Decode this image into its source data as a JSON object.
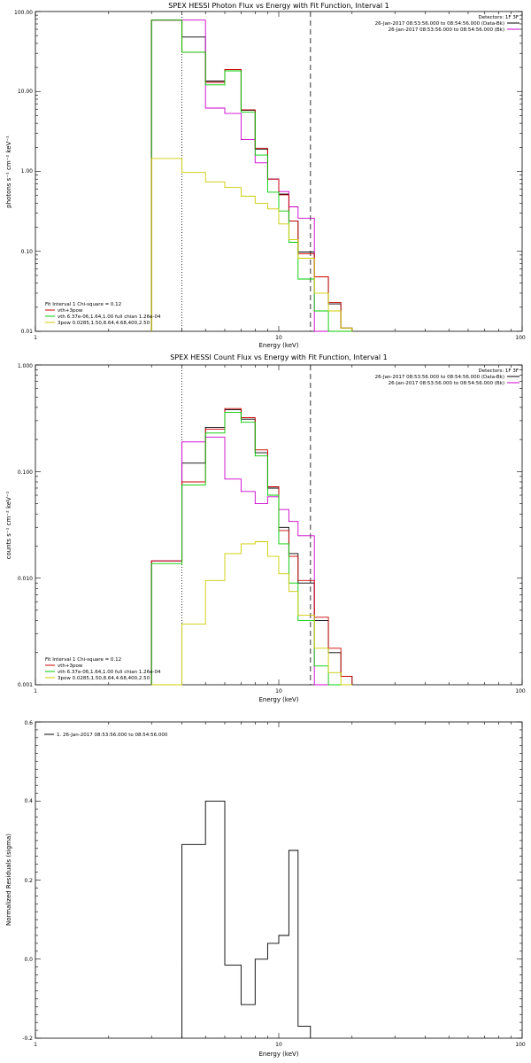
{
  "chart_data": [
    {
      "type": "line",
      "title": "SPEX HESSI Photon Flux vs Energy with Fit Function, Interval 1",
      "xlabel": "Energy (keV)",
      "ylabel": "photons s⁻¹ cm⁻² keV⁻¹",
      "xscale": "log",
      "yscale": "log",
      "xlim": [
        1,
        100
      ],
      "ylim": [
        0.01,
        100
      ],
      "xticks": [
        "1",
        "10",
        "100"
      ],
      "yticks": [
        "0.01",
        "0.10",
        "1.00",
        "10.00",
        "100.00"
      ],
      "detectors": "Detectors: 1F 3F",
      "legend_time": [
        {
          "text": "26-Jan-2017 08:53:56.000 to 08:54:56.000 (Data-Bk)",
          "color": "#000000"
        },
        {
          "text": "26-Jan-2017 08:53:56.000 to 08:54:56.000 (Bk)",
          "color": "#cc00cc"
        }
      ],
      "legend_fit": [
        {
          "text": "Fit Interval 1   Chi-square = 0.12",
          "color": "#000000"
        },
        {
          "text": "vth+3pow",
          "color": "#cc0000"
        },
        {
          "text": "vth 6.37e-06,1.64,1.00  full chian 1.26e-04",
          "color": "#00cc00"
        },
        {
          "text": "3pow 0.0285,1.50,8.64,4.68,400,2.50",
          "color": "#cccc00"
        }
      ],
      "bin_edges": [
        3,
        4,
        5,
        6,
        7,
        8,
        9,
        10,
        11,
        12,
        14,
        16,
        18,
        20
      ],
      "vlines": [
        {
          "x": 4,
          "style": "dotted"
        },
        {
          "x": 13.5,
          "style": "dashed"
        }
      ],
      "series": [
        {
          "name": "Data-Bk",
          "color": "#000000",
          "values": [
            78,
            48,
            13.5,
            18.8,
            5.8,
            1.9,
            0.8,
            0.52,
            0.24,
            0.098,
            0.048,
            0.022,
            0.011
          ]
        },
        {
          "name": "Bk",
          "color": "#cc00cc",
          "values": [
            78,
            78,
            6.2,
            5.3,
            2.5,
            1.28,
            0.8,
            0.56,
            0.36,
            0.26,
            0.01,
            0.01,
            0.01
          ]
        },
        {
          "name": "vth+3pow",
          "color": "#cc0000",
          "values": [
            78,
            31,
            13.0,
            18.8,
            5.9,
            1.95,
            0.8,
            0.51,
            0.24,
            0.093,
            0.048,
            0.023,
            0.011
          ]
        },
        {
          "name": "vth",
          "color": "#00cc00",
          "values": [
            78,
            31,
            12.1,
            18.1,
            5.5,
            1.6,
            0.55,
            0.32,
            0.13,
            0.045,
            0.018,
            0.01,
            0.01
          ]
        },
        {
          "name": "3pow",
          "color": "#cccc00",
          "values": [
            1.45,
            0.97,
            0.74,
            0.63,
            0.49,
            0.4,
            0.34,
            0.22,
            0.14,
            0.082,
            0.03,
            0.018,
            0.011
          ]
        }
      ]
    },
    {
      "type": "line",
      "title": "SPEX HESSI Count Flux vs Energy with Fit Function, Interval 1",
      "xlabel": "Energy (keV)",
      "ylabel": "counts s⁻¹ cm⁻² keV⁻¹",
      "xscale": "log",
      "yscale": "log",
      "xlim": [
        1,
        100
      ],
      "ylim": [
        0.001,
        1
      ],
      "xticks": [
        "1",
        "10",
        "100"
      ],
      "yticks": [
        "0.001",
        "0.010",
        "0.100",
        "1.000"
      ],
      "detectors": "Detectors: 1F 3F",
      "legend_time": [
        {
          "text": "26-Jan-2017 08:53:56.000 to 08:54:56.000 (Data-Bk)",
          "color": "#000000"
        },
        {
          "text": "26-Jan-2017 08:53:56.000 to 08:54:56.000 (Bk)",
          "color": "#cc00cc"
        }
      ],
      "legend_fit": [
        {
          "text": "Fit Interval 1   Chi-square = 0.12",
          "color": "#000000"
        },
        {
          "text": "vth+3pow",
          "color": "#cc0000"
        },
        {
          "text": "vth 6.37e-06,1.64,1.00  full chian 1.26e-04",
          "color": "#00cc00"
        },
        {
          "text": "3pow 0.0285,1.50,8.64,4.68,400,2.50",
          "color": "#cccc00"
        }
      ],
      "bin_edges": [
        3,
        4,
        5,
        6,
        7,
        8,
        9,
        10,
        11,
        12,
        14,
        16,
        18,
        20
      ],
      "vlines": [
        {
          "x": 4,
          "style": "dotted"
        },
        {
          "x": 13.5,
          "style": "dashed"
        }
      ],
      "series": [
        {
          "name": "Data-Bk",
          "color": "#000000",
          "values": [
            0.0145,
            0.12,
            0.26,
            0.38,
            0.31,
            0.15,
            0.07,
            0.03,
            0.017,
            0.009,
            0.004,
            0.002,
            0.0012
          ]
        },
        {
          "name": "Bk",
          "color": "#cc00cc",
          "values": [
            0.0145,
            0.19,
            0.21,
            0.085,
            0.065,
            0.05,
            0.058,
            0.044,
            0.034,
            0.025,
            0.001,
            0.001,
            0.001
          ]
        },
        {
          "name": "vth+3pow",
          "color": "#cc0000",
          "values": [
            0.0145,
            0.08,
            0.25,
            0.39,
            0.32,
            0.16,
            0.072,
            0.028,
            0.016,
            0.0095,
            0.0043,
            0.0022,
            0.0012
          ]
        },
        {
          "name": "vth",
          "color": "#00cc00",
          "values": [
            0.0137,
            0.075,
            0.23,
            0.36,
            0.29,
            0.14,
            0.06,
            0.021,
            0.009,
            0.004,
            0.0015,
            0.001,
            0.001
          ]
        },
        {
          "name": "3pow",
          "color": "#cccc00",
          "values": [
            0.001,
            0.0037,
            0.0095,
            0.017,
            0.021,
            0.022,
            0.016,
            0.011,
            0.0075,
            0.0045,
            0.0022,
            0.0013,
            0.001
          ]
        }
      ]
    },
    {
      "type": "line",
      "title": "",
      "xlabel": "Energy (keV)",
      "ylabel": "Normalized Residuals (sigma)",
      "xscale": "log",
      "yscale": "linear",
      "xlim": [
        1,
        100
      ],
      "ylim": [
        -0.2,
        0.6
      ],
      "xticks": [
        "1",
        "10",
        "100"
      ],
      "yticks": [
        "-0.2",
        "0.0",
        "0.2",
        "0.4",
        "0.6"
      ],
      "legend": [
        {
          "text": "1. 26-Jan-2017 08:53:56.000 to 08:54:56.000",
          "color": "#000000"
        }
      ],
      "bin_edges": [
        4,
        5,
        6,
        7,
        8,
        9,
        10,
        11,
        12,
        13.5
      ],
      "series": [
        {
          "color": "#000000",
          "values": [
            0.29,
            0.4,
            -0.015,
            -0.115,
            0.0,
            0.04,
            0.06,
            0.275,
            -0.17
          ]
        }
      ]
    }
  ]
}
